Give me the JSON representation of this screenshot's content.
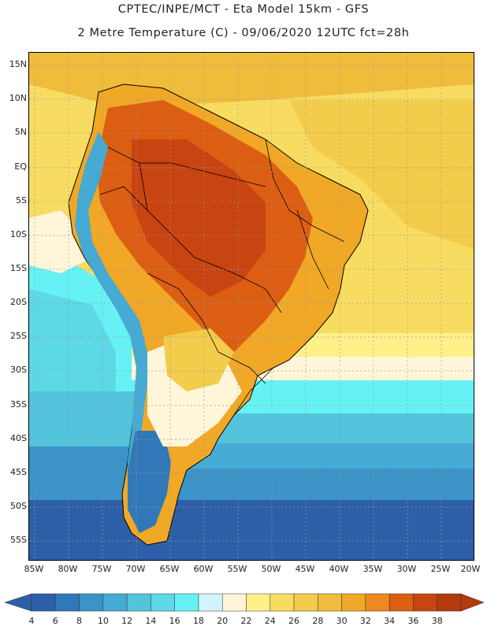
{
  "header": {
    "line1": "CPTEC/INPE/MCT -  Eta Model 15km - GFS",
    "line2": "2 Metre Temperature (C) - 09/06/2020 12UTC fct=28h"
  },
  "map": {
    "lat_labels": [
      "15N",
      "10N",
      "5N",
      "EQ",
      "5S",
      "10S",
      "15S",
      "20S",
      "25S",
      "30S",
      "35S",
      "40S",
      "45S",
      "50S",
      "55S"
    ],
    "lon_labels": [
      "85W",
      "80W",
      "75W",
      "70W",
      "65W",
      "60W",
      "55W",
      "50W",
      "45W",
      "40W",
      "35W",
      "30W",
      "25W",
      "20W"
    ],
    "lat_range": [
      16.5,
      -58.5
    ],
    "lon_range": [
      -85.5,
      -19.5
    ]
  },
  "colorbar": {
    "labels": [
      "4",
      "6",
      "8",
      "10",
      "12",
      "14",
      "16",
      "18",
      "20",
      "22",
      "24",
      "26",
      "28",
      "30",
      "32",
      "34",
      "36",
      "38"
    ],
    "colors": [
      "#2d5fa8",
      "#3178b8",
      "#3b93c8",
      "#45aad4",
      "#52c4dc",
      "#5cd8e6",
      "#66f2f4",
      "#d2f4fa",
      "#fff6da",
      "#fff08a",
      "#f8dc62",
      "#f2cc4a",
      "#f0bc3c",
      "#f0a826",
      "#ec8a20",
      "#dc5e12",
      "#c84410",
      "#b23a0e"
    ]
  }
}
